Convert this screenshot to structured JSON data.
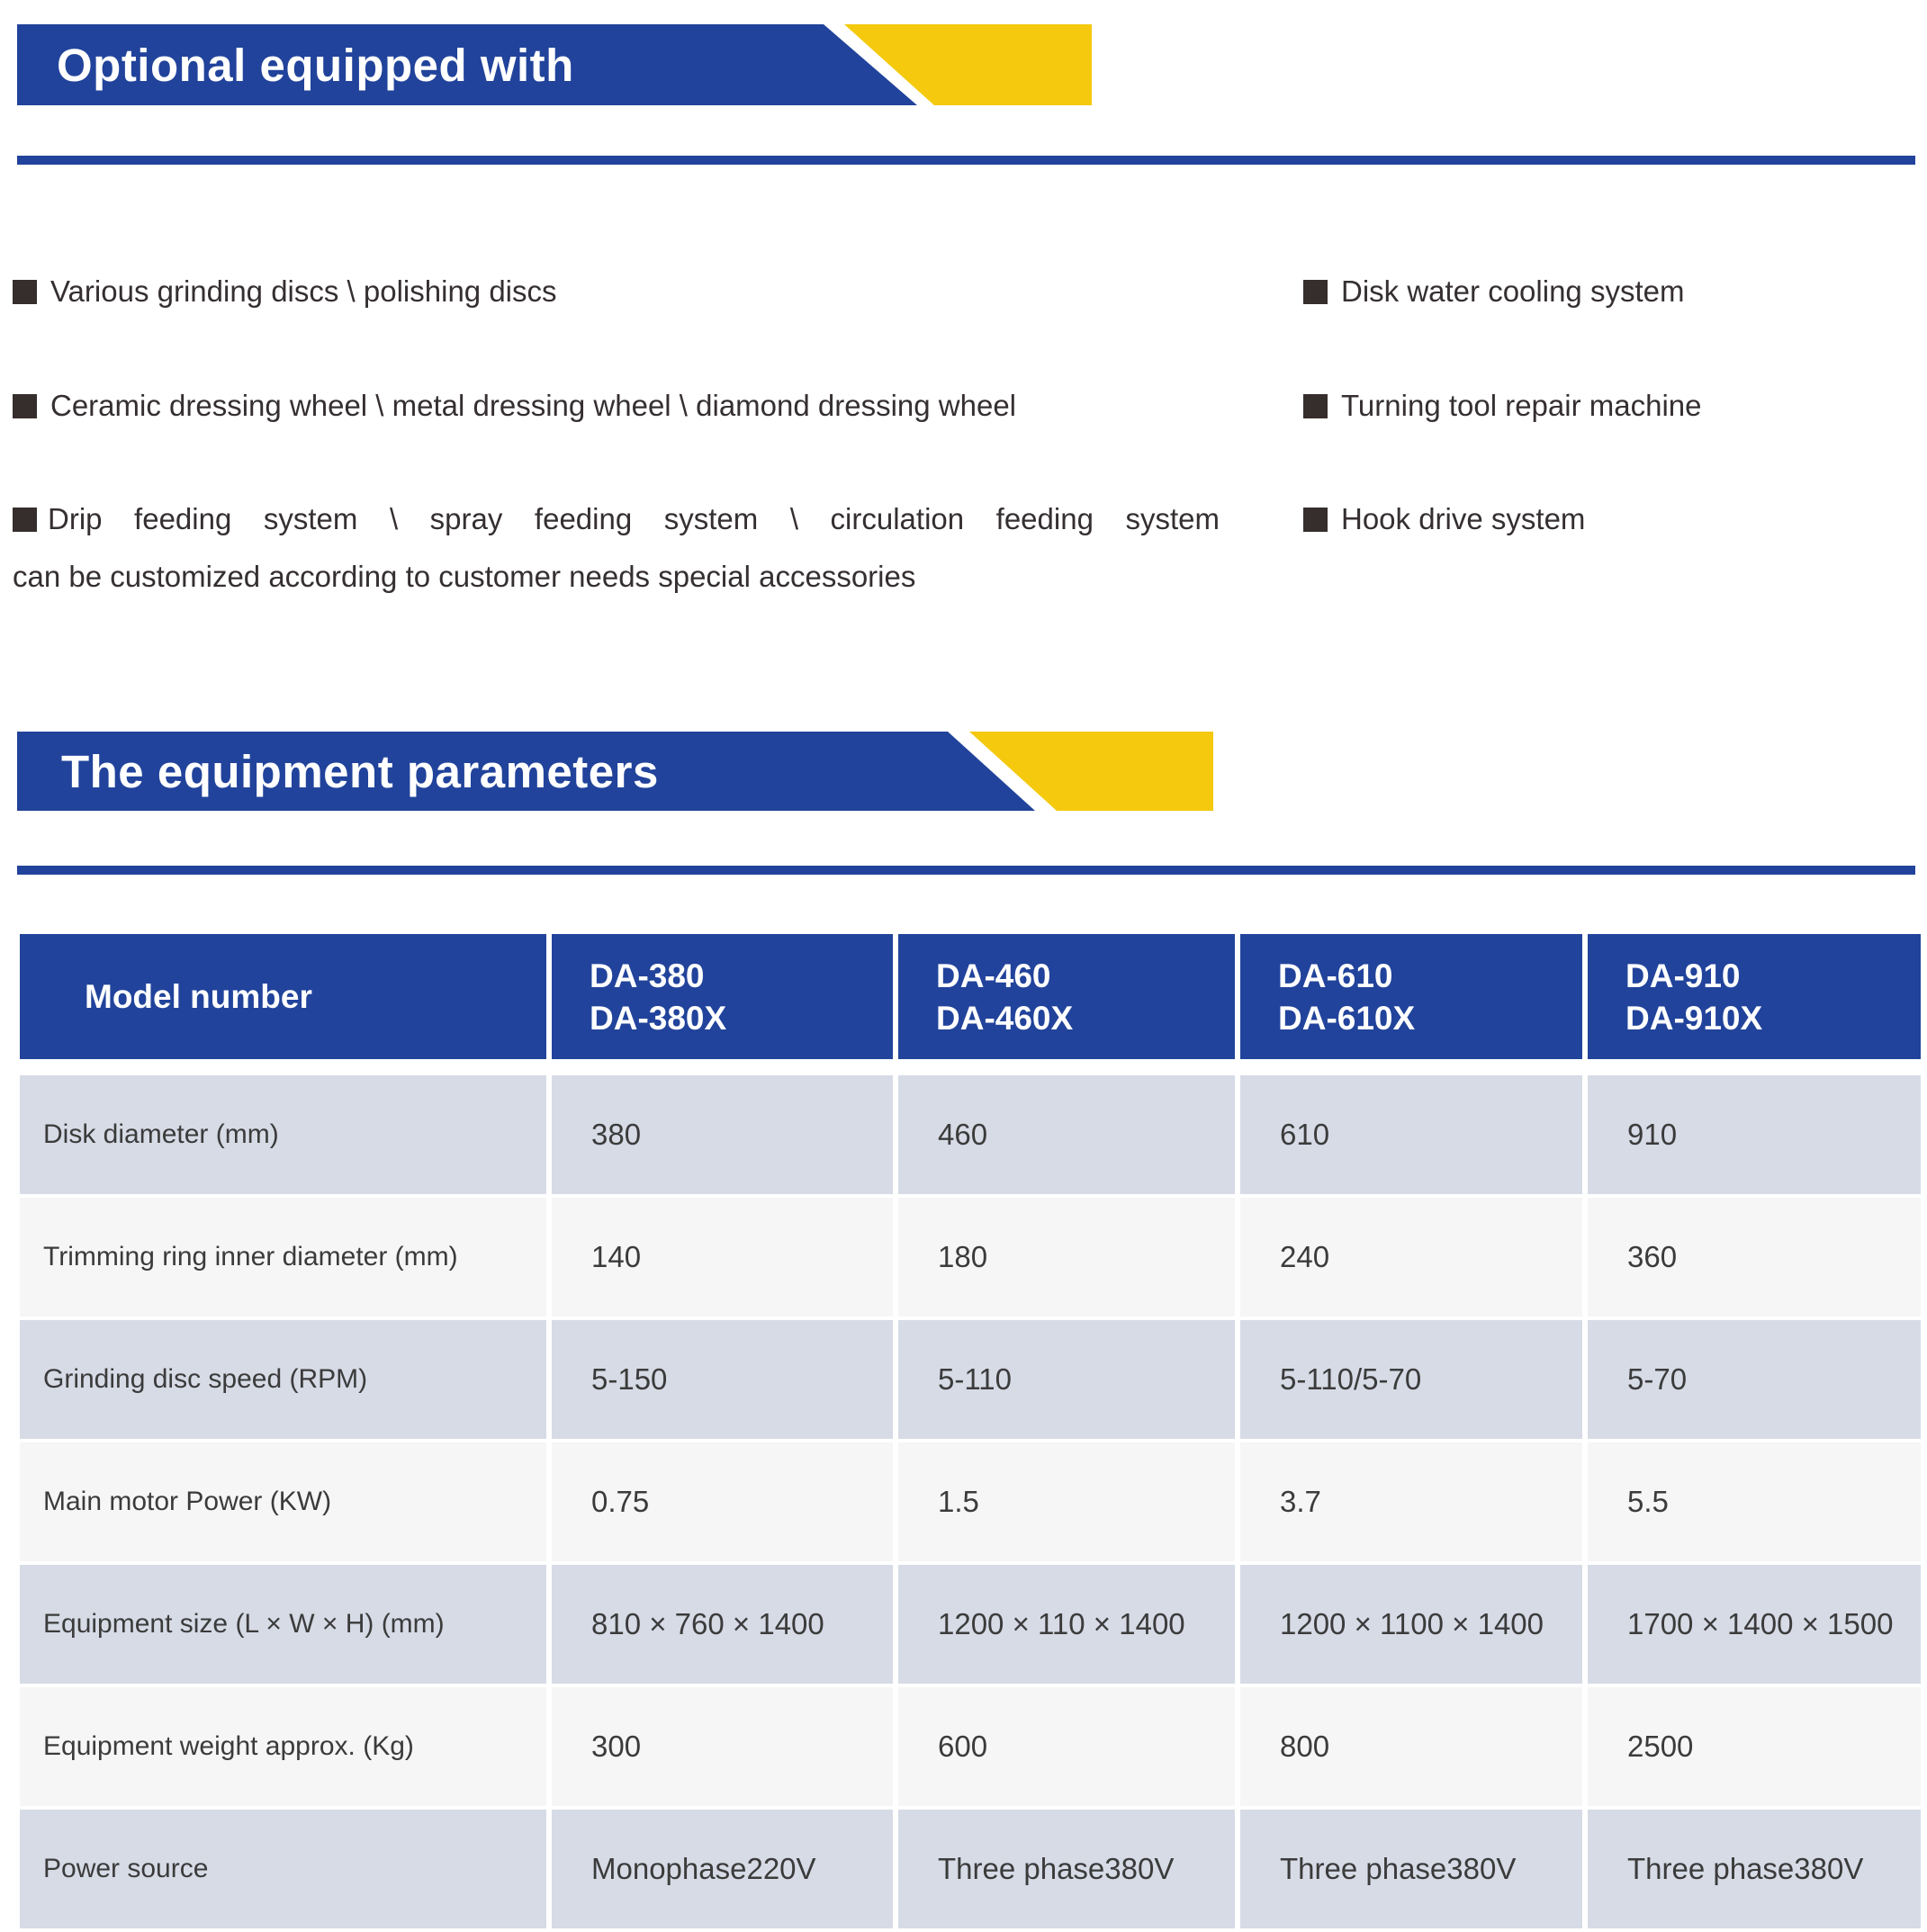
{
  "colors": {
    "banner_blue": "#21439B",
    "accent_yellow": "#F4C90E",
    "row_gray": "#D6DBE6",
    "row_white": "#F6F6F6",
    "bullet_square": "#362E2C",
    "text_dark": "#352F31"
  },
  "section1": {
    "title": "Optional equipped with",
    "left_items": [
      "Various grinding discs \\ polishing discs",
      "Ceramic dressing wheel \\ metal dressing wheel \\ diamond dressing wheel",
      "Drip feeding system \\ spray feeding system \\ circulation feeding system"
    ],
    "left_item3_line2": "can be customized according to customer needs special accessories",
    "right_items": [
      "Disk water cooling system",
      "Turning tool repair machine",
      "Hook drive system"
    ]
  },
  "section2": {
    "title": "The equipment parameters"
  },
  "table": {
    "corner_label": "Model number",
    "columns": [
      {
        "line1": "DA-380",
        "line2": "DA-380X"
      },
      {
        "line1": "DA-460",
        "line2": "DA-460X"
      },
      {
        "line1": "DA-610",
        "line2": "DA-610X"
      },
      {
        "line1": "DA-910",
        "line2": "DA-910X"
      }
    ],
    "rows": [
      {
        "label": "Disk diameter (mm)",
        "values": [
          "380",
          "460",
          "610",
          "910"
        ]
      },
      {
        "label": "Trimming ring inner diameter (mm)",
        "values": [
          "140",
          "180",
          "240",
          "360"
        ]
      },
      {
        "label": "Grinding disc speed (RPM)",
        "values": [
          "5-150",
          "5-110",
          "5-110/5-70",
          "5-70"
        ]
      },
      {
        "label": "Main motor Power (KW)",
        "values": [
          "0.75",
          "1.5",
          "3.7",
          "5.5"
        ]
      },
      {
        "label": "Equipment size (L × W × H) (mm)",
        "values": [
          "810 × 760 × 1400",
          "1200 × 110 × 1400",
          "1200 × 1100 × 1400",
          "1700 × 1400 × 1500"
        ]
      },
      {
        "label": "Equipment weight approx. (Kg)",
        "values": [
          "300",
          "600",
          "800",
          "2500"
        ]
      },
      {
        "label": "Power source",
        "values": [
          "Monophase220V",
          "Three phase380V",
          "Three phase380V",
          "Three phase380V"
        ]
      }
    ]
  }
}
